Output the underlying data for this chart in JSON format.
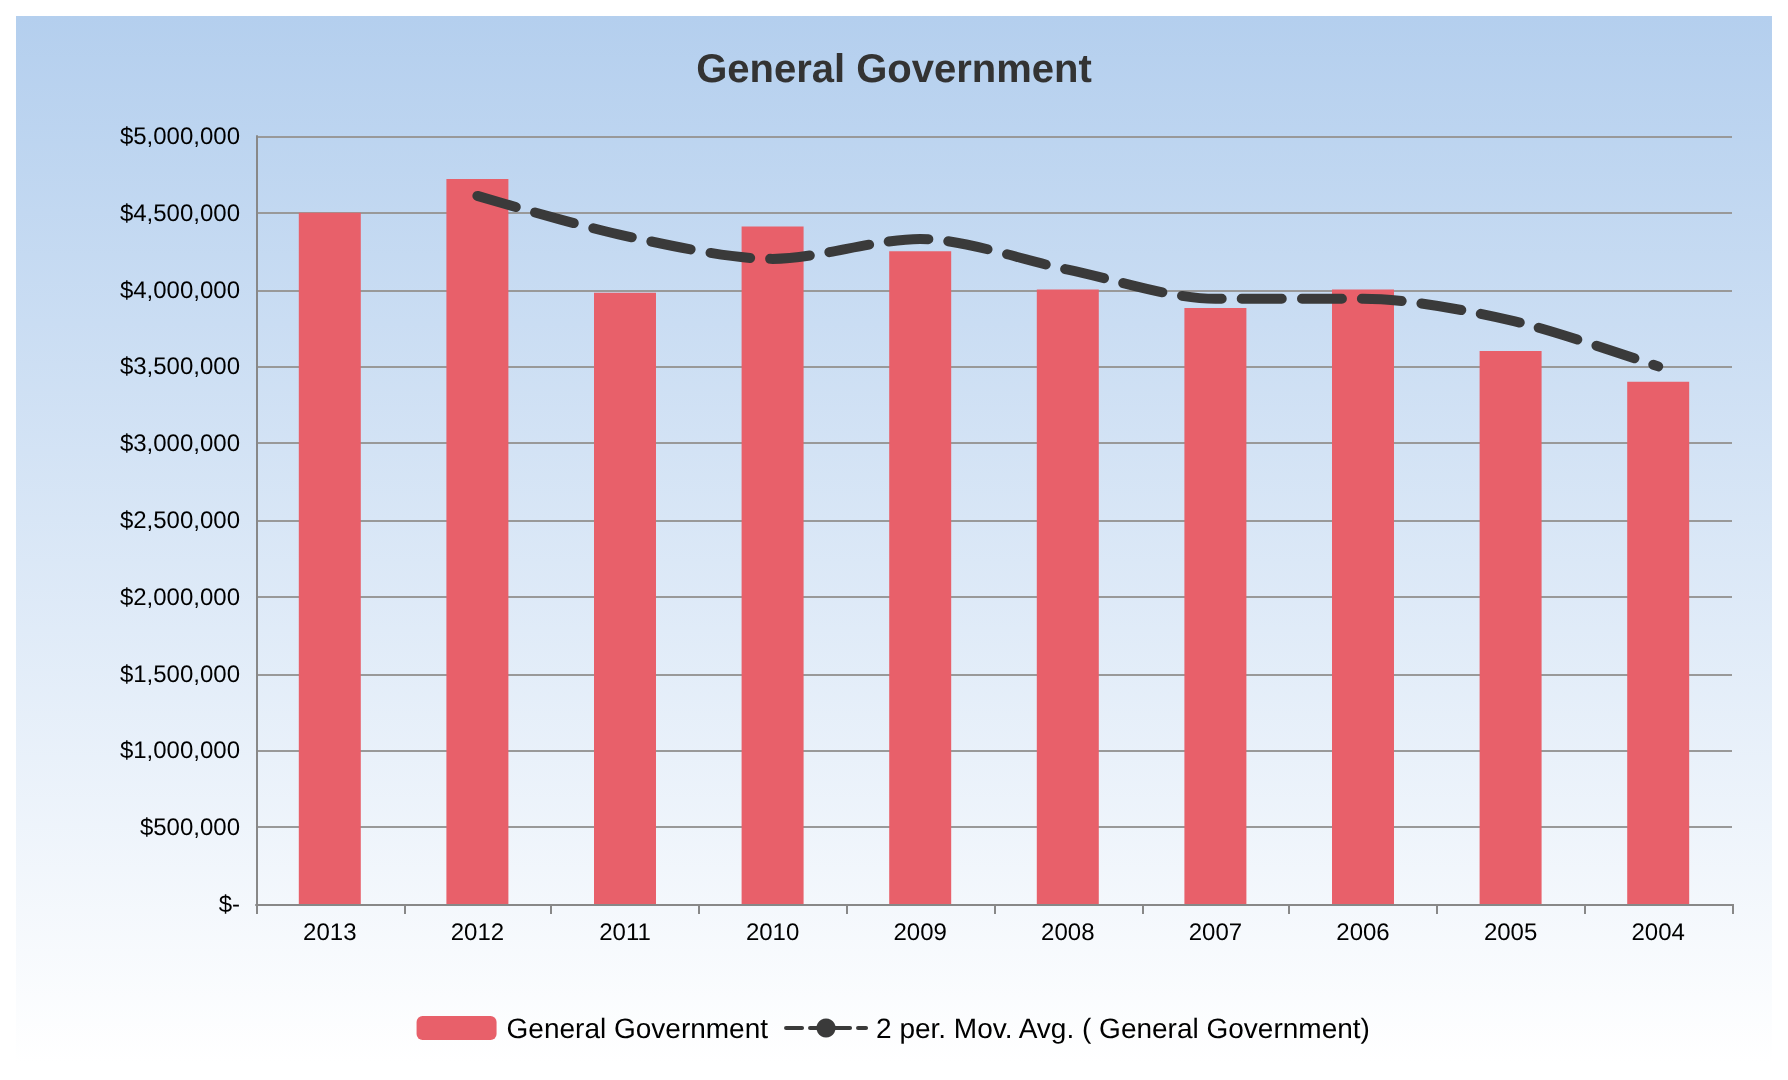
{
  "chart_data": {
    "type": "bar",
    "title": "General Government",
    "categories": [
      "2013",
      "2012",
      "2011",
      "2010",
      "2009",
      "2008",
      "2007",
      "2006",
      "2005",
      "2004"
    ],
    "series": [
      {
        "name": "General Government",
        "color": "#e8606a",
        "values": [
          4500000,
          4720000,
          3980000,
          4410000,
          4250000,
          4000000,
          3880000,
          4000000,
          3600000,
          3400000
        ]
      },
      {
        "name": "2 per. Mov. Avg. ( General Government)",
        "type": "line",
        "color": "#3a3a3a",
        "line_style": "dashed",
        "marker": "none",
        "values": [
          null,
          4610000,
          4350000,
          4200000,
          4330000,
          4130000,
          3940000,
          3940000,
          3800000,
          3500000
        ]
      }
    ],
    "ylim": [
      0,
      5000000
    ],
    "yticks": [
      {
        "value": 0,
        "label": "$-"
      },
      {
        "value": 500000,
        "label": "$500,000"
      },
      {
        "value": 1000000,
        "label": "$1,000,000"
      },
      {
        "value": 1500000,
        "label": "$1,500,000"
      },
      {
        "value": 2000000,
        "label": "$2,000,000"
      },
      {
        "value": 2500000,
        "label": "$2,500,000"
      },
      {
        "value": 3000000,
        "label": "$3,000,000"
      },
      {
        "value": 3500000,
        "label": "$3,500,000"
      },
      {
        "value": 4000000,
        "label": "$4,000,000"
      },
      {
        "value": 4500000,
        "label": "$4,500,000"
      },
      {
        "value": 5000000,
        "label": "$5,000,000"
      }
    ],
    "grid": "y",
    "legend": "bottom"
  }
}
